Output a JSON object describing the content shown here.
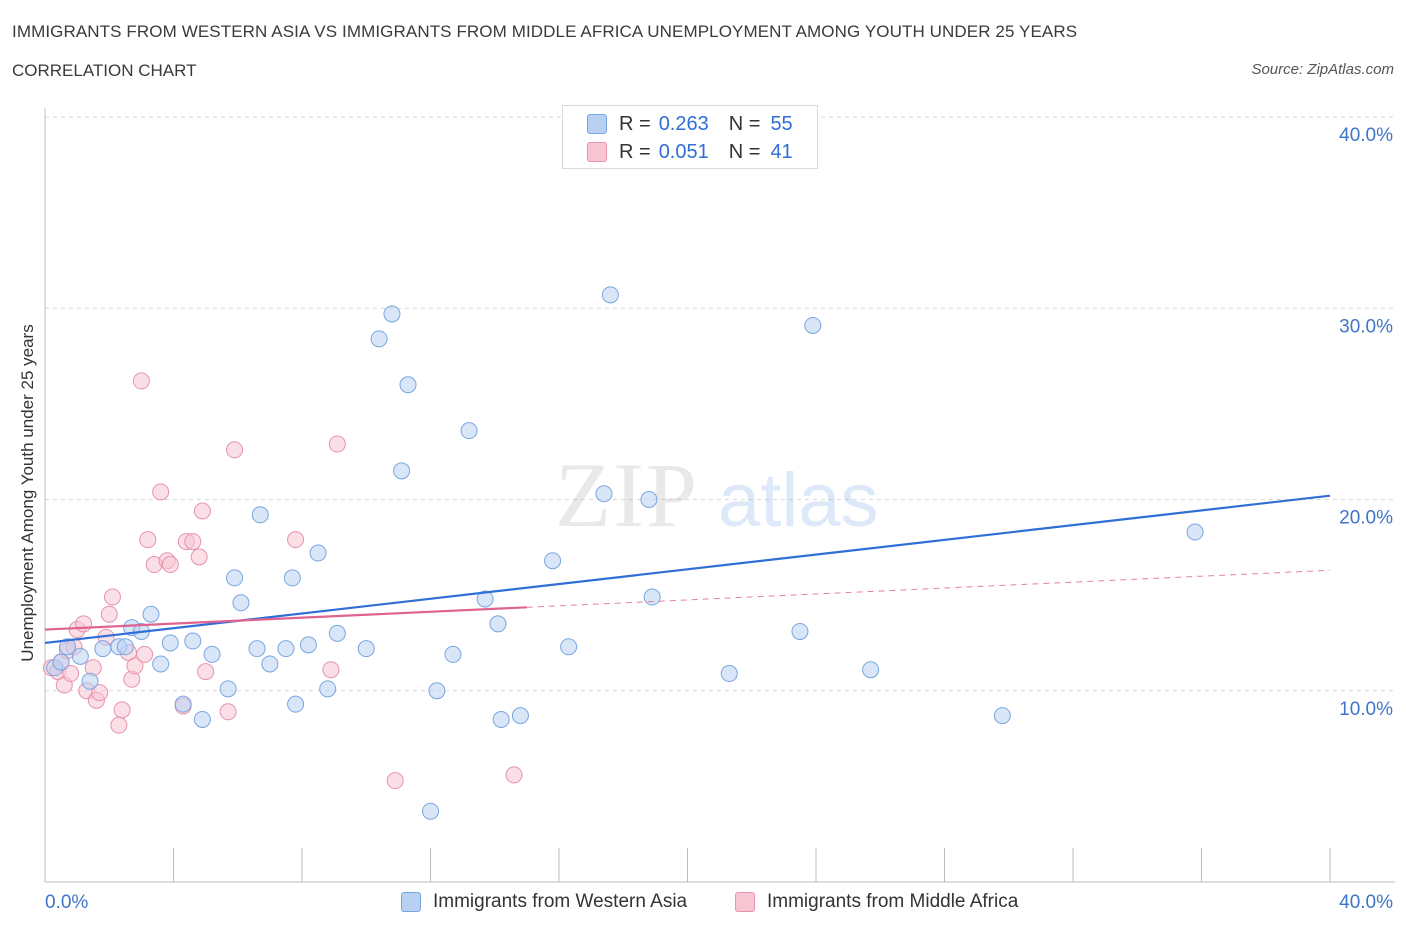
{
  "header": {
    "title": "IMMIGRANTS FROM WESTERN ASIA VS IMMIGRANTS FROM MIDDLE AFRICA UNEMPLOYMENT AMONG YOUTH UNDER 25 YEARS",
    "subtitle": "CORRELATION CHART",
    "source": "Source: ZipAtlas.com"
  },
  "legend_top": {
    "rows": [
      {
        "r_label": "R =",
        "r_value": "0.263",
        "n_label": "N =",
        "n_value": "55"
      },
      {
        "r_label": "R =",
        "r_value": "0.051",
        "n_label": "N =",
        "n_value": "41"
      }
    ]
  },
  "colors": {
    "blue_fill": "#b8d1f3",
    "blue_stroke": "#7aa6e0",
    "blue_line": "#2f6fd6",
    "pink_fill": "#f7c5d3",
    "pink_stroke": "#e892ac",
    "pink_line": "#e0628f",
    "grid": "#d8d8d8",
    "axis_text": "#3f74c9"
  },
  "watermark": {
    "zip": "ZIP",
    "atlas": "atlas"
  },
  "chart_data": {
    "type": "scatter",
    "title": "IMMIGRANTS FROM WESTERN ASIA VS IMMIGRANTS FROM MIDDLE AFRICA UNEMPLOYMENT AMONG YOUTH UNDER 25 YEARS",
    "xlabel": "",
    "ylabel": "Unemployment Among Youth under 25 years",
    "xlim": [
      0,
      40
    ],
    "ylim": [
      0,
      40
    ],
    "x_tick_labels": [
      "0.0%",
      "40.0%"
    ],
    "y_ticks": [
      10,
      20,
      30,
      40
    ],
    "y_tick_labels": [
      "10.0%",
      "20.0%",
      "30.0%",
      "40.0%"
    ],
    "grid": true,
    "legend": "bottom",
    "series": [
      {
        "name": "Immigrants from Western Asia",
        "color": "blue",
        "R": 0.263,
        "N": 55,
        "trend": {
          "x": [
            0,
            40
          ],
          "y": [
            12.5,
            20.2
          ],
          "dashed_from": null
        },
        "points": [
          [
            0.3,
            11.2
          ],
          [
            0.5,
            11.5
          ],
          [
            0.7,
            12.3
          ],
          [
            1.1,
            11.8
          ],
          [
            1.4,
            10.5
          ],
          [
            1.8,
            12.2
          ],
          [
            2.3,
            12.3
          ],
          [
            2.5,
            12.3
          ],
          [
            2.7,
            13.3
          ],
          [
            3.0,
            13.1
          ],
          [
            3.3,
            14.0
          ],
          [
            3.6,
            11.4
          ],
          [
            3.9,
            12.5
          ],
          [
            4.3,
            9.3
          ],
          [
            4.6,
            12.6
          ],
          [
            4.9,
            8.5
          ],
          [
            5.2,
            11.9
          ],
          [
            5.7,
            10.1
          ],
          [
            5.9,
            15.9
          ],
          [
            6.1,
            14.6
          ],
          [
            6.6,
            12.2
          ],
          [
            6.7,
            19.2
          ],
          [
            7.0,
            11.4
          ],
          [
            7.5,
            12.2
          ],
          [
            7.7,
            15.9
          ],
          [
            7.8,
            9.3
          ],
          [
            8.2,
            12.4
          ],
          [
            8.5,
            17.2
          ],
          [
            8.8,
            10.1
          ],
          [
            9.1,
            13.0
          ],
          [
            10.0,
            12.2
          ],
          [
            10.4,
            28.4
          ],
          [
            10.8,
            29.7
          ],
          [
            11.1,
            21.5
          ],
          [
            11.3,
            26.0
          ],
          [
            12.0,
            3.7
          ],
          [
            12.2,
            10.0
          ],
          [
            12.7,
            11.9
          ],
          [
            13.2,
            23.6
          ],
          [
            13.7,
            14.8
          ],
          [
            14.1,
            13.5
          ],
          [
            14.2,
            8.5
          ],
          [
            14.8,
            8.7
          ],
          [
            15.8,
            16.8
          ],
          [
            16.3,
            12.3
          ],
          [
            17.4,
            20.3
          ],
          [
            17.6,
            30.7
          ],
          [
            18.8,
            20.0
          ],
          [
            18.9,
            14.9
          ],
          [
            21.3,
            10.9
          ],
          [
            23.5,
            13.1
          ],
          [
            23.9,
            29.1
          ],
          [
            25.7,
            11.1
          ],
          [
            29.8,
            8.7
          ],
          [
            35.8,
            18.3
          ]
        ]
      },
      {
        "name": "Immigrants from Middle Africa",
        "color": "pink",
        "R": 0.051,
        "N": 41,
        "trend": {
          "x": [
            0,
            40
          ],
          "y": [
            13.2,
            16.3
          ],
          "dashed_from": 15.0
        },
        "points": [
          [
            0.2,
            11.2
          ],
          [
            0.4,
            11.0
          ],
          [
            0.5,
            11.5
          ],
          [
            0.6,
            10.3
          ],
          [
            0.7,
            12.1
          ],
          [
            0.8,
            10.9
          ],
          [
            1.0,
            13.2
          ],
          [
            1.2,
            13.5
          ],
          [
            1.3,
            10.0
          ],
          [
            1.5,
            11.2
          ],
          [
            1.6,
            9.5
          ],
          [
            1.7,
            9.9
          ],
          [
            1.9,
            12.8
          ],
          [
            2.0,
            14.0
          ],
          [
            2.1,
            14.9
          ],
          [
            2.3,
            8.2
          ],
          [
            2.4,
            9.0
          ],
          [
            2.6,
            12.0
          ],
          [
            2.7,
            10.6
          ],
          [
            2.8,
            11.3
          ],
          [
            3.0,
            26.2
          ],
          [
            3.1,
            11.9
          ],
          [
            3.2,
            17.9
          ],
          [
            3.4,
            16.6
          ],
          [
            3.6,
            20.4
          ],
          [
            3.8,
            16.8
          ],
          [
            3.9,
            16.6
          ],
          [
            4.3,
            9.2
          ],
          [
            4.4,
            17.8
          ],
          [
            4.6,
            17.8
          ],
          [
            4.8,
            17.0
          ],
          [
            4.9,
            19.4
          ],
          [
            5.0,
            11.0
          ],
          [
            5.7,
            8.9
          ],
          [
            5.9,
            22.6
          ],
          [
            7.8,
            17.9
          ],
          [
            8.9,
            11.1
          ],
          [
            9.1,
            22.9
          ],
          [
            10.9,
            5.3
          ],
          [
            14.6,
            5.6
          ],
          [
            0.9,
            12.3
          ]
        ]
      }
    ]
  },
  "bottom_legend": [
    {
      "label": "Immigrants from Western Asia"
    },
    {
      "label": "Immigrants from Middle Africa"
    }
  ]
}
